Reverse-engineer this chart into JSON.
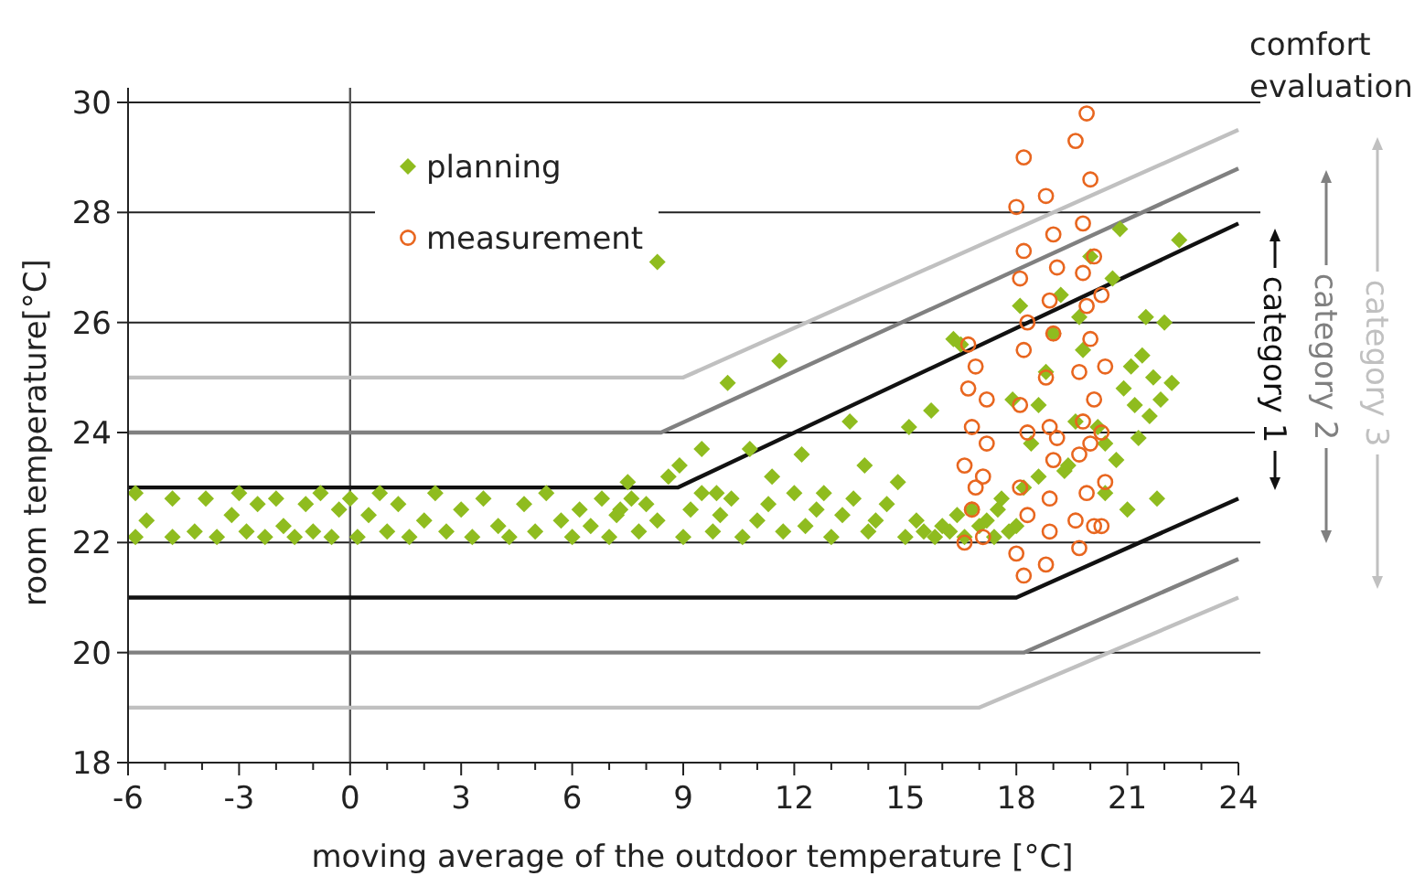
{
  "chart_data": {
    "type": "scatter",
    "xlabel": "moving average of the outdoor temperature [°C]",
    "ylabel": "room temperature[°C]",
    "xlim": [
      -6,
      24
    ],
    "ylim": [
      18,
      30
    ],
    "xticks": [
      -6,
      {
        "value": -5,
        "label": null
      },
      {
        "value": -4,
        "label": null
      },
      -3,
      {
        "value": -2,
        "label": null
      },
      {
        "value": -1,
        "label": null
      },
      0,
      {
        "value": 1,
        "label": null
      },
      {
        "value": 2,
        "label": null
      },
      3,
      {
        "value": 4,
        "label": null
      },
      {
        "value": 5,
        "label": null
      },
      6,
      {
        "value": 7,
        "label": null
      },
      {
        "value": 8,
        "label": null
      },
      9,
      {
        "value": 10,
        "label": null
      },
      {
        "value": 11,
        "label": null
      },
      12,
      {
        "value": 13,
        "label": null
      },
      {
        "value": 14,
        "label": null
      },
      15,
      {
        "value": 16,
        "label": null
      },
      {
        "value": 17,
        "label": null
      },
      18,
      {
        "value": 19,
        "label": null
      },
      {
        "value": 20,
        "label": null
      },
      21,
      {
        "value": 22,
        "label": null
      },
      {
        "value": 23,
        "label": null
      },
      24
    ],
    "yticks": [
      18,
      20,
      22,
      24,
      26,
      28,
      30
    ],
    "grid": "y",
    "legend": "top left",
    "ref_lines": [
      {
        "axis": "x",
        "value": 0,
        "color": "#555555"
      }
    ],
    "annotations": [
      "comfort evaluation"
    ],
    "series": [
      {
        "name": "planning",
        "marker": "diamond",
        "color": "#8fbc1f",
        "x": [
          -5.8,
          -5.8,
          -5.5,
          -4.8,
          -4.8,
          -4.2,
          -3.9,
          -3.6,
          -3.2,
          -3,
          -2.8,
          -2.5,
          -2.3,
          -2,
          -1.8,
          -1.5,
          -1.2,
          -1,
          -0.8,
          -0.5,
          -0.3,
          0,
          0.2,
          0.5,
          0.8,
          1,
          1.3,
          1.6,
          2,
          2.3,
          2.6,
          3,
          3.3,
          3.6,
          4,
          4.3,
          4.7,
          5,
          5.3,
          5.7,
          6,
          6.2,
          6.5,
          6.8,
          7,
          7.2,
          7.5,
          7.8,
          8,
          8.3,
          8.6,
          9,
          9.2,
          9.5,
          9.8,
          10,
          10.3,
          10.6,
          11,
          11.3,
          11.7,
          12,
          12.3,
          12.6,
          13,
          13.3,
          13.6,
          14,
          14.2,
          14.5,
          15,
          15.3,
          15.5,
          15.8,
          16,
          16.2,
          16.4,
          16.6,
          16.8,
          17,
          17.2,
          17.4,
          17.6,
          17.8,
          18,
          18.2,
          18.4,
          18.6,
          18.8,
          19,
          19.2,
          19.4,
          19.6,
          19.8,
          20,
          20.2,
          20.4,
          20.6,
          20.7,
          20.8,
          20.9,
          21,
          21.1,
          21.2,
          21.3,
          21.4,
          21.5,
          21.6,
          21.7,
          21.8,
          21.9,
          22,
          22.2,
          22.4,
          8.3,
          9.5,
          10.2,
          11.6,
          12.2,
          13.5,
          14.8,
          15.7,
          16.5,
          17.5,
          18.6,
          19.7,
          20.4,
          19.3,
          18.1,
          17.9,
          16.3,
          15.1,
          13.9,
          12.8,
          11.4,
          10.8,
          9.9,
          8.9,
          7.6,
          7.3
        ],
        "values": [
          22.9,
          22.1,
          22.4,
          22.8,
          22.1,
          22.2,
          22.8,
          22.1,
          22.5,
          22.9,
          22.2,
          22.7,
          22.1,
          22.8,
          22.3,
          22.1,
          22.7,
          22.2,
          22.9,
          22.1,
          22.6,
          22.8,
          22.1,
          22.5,
          22.9,
          22.2,
          22.7,
          22.1,
          22.4,
          22.9,
          22.2,
          22.6,
          22.1,
          22.8,
          22.3,
          22.1,
          22.7,
          22.2,
          22.9,
          22.4,
          22.1,
          22.6,
          22.3,
          22.8,
          22.1,
          22.5,
          23.1,
          22.2,
          22.7,
          22.4,
          23.2,
          22.1,
          22.6,
          22.9,
          22.2,
          22.5,
          22.8,
          22.1,
          22.4,
          22.7,
          22.2,
          22.9,
          22.3,
          22.6,
          22.1,
          22.5,
          22.8,
          22.2,
          22.4,
          22.7,
          22.1,
          22.4,
          22.2,
          22.1,
          22.3,
          22.2,
          22.5,
          22.1,
          22.6,
          22.3,
          22.4,
          22.1,
          22.8,
          22.2,
          22.3,
          23,
          23.8,
          24.5,
          25.1,
          25.8,
          26.5,
          23.4,
          24.2,
          25.5,
          27.2,
          24.1,
          22.9,
          26.8,
          23.5,
          27.7,
          24.8,
          22.6,
          25.2,
          24.5,
          23.9,
          25.4,
          26.1,
          24.3,
          25,
          22.8,
          24.6,
          26,
          24.9,
          27.5,
          27.1,
          23.7,
          24.9,
          25.3,
          23.6,
          24.2,
          23.1,
          24.4,
          25.6,
          22.6,
          23.2,
          26.1,
          23.8,
          23.3,
          26.3,
          24.6,
          25.7,
          24.1,
          23.4,
          22.9,
          23.2,
          23.7,
          22.9,
          23.4,
          22.8,
          22.6
        ]
      },
      {
        "name": "measurement",
        "marker": "circle",
        "color": "#e8661f",
        "x": [
          16.6,
          16.6,
          16.7,
          16.7,
          16.8,
          16.8,
          16.9,
          16.9,
          17.1,
          17.1,
          17.2,
          17.2,
          18,
          18,
          18.1,
          18.1,
          18.1,
          18.2,
          18.2,
          18.2,
          18.3,
          18.3,
          18.3,
          18.2,
          18.8,
          18.8,
          18.9,
          18.9,
          18.9,
          19,
          19,
          19,
          18.9,
          18.8,
          19.1,
          19.1,
          19.6,
          19.6,
          19.7,
          19.7,
          19.8,
          19.8,
          19.9,
          19.9,
          19.9,
          20,
          20,
          20,
          20.1,
          20.1,
          20.1,
          19.7,
          19.8,
          20.3,
          20.3,
          20.3,
          20.4,
          20.4
        ],
        "values": [
          22,
          23.4,
          24.8,
          25.6,
          22.6,
          24.1,
          23,
          25.2,
          22.1,
          23.2,
          24.6,
          23.8,
          21.8,
          28.1,
          23,
          24.5,
          26.8,
          21.4,
          25.5,
          27.3,
          22.5,
          24,
          26,
          29,
          21.6,
          28.3,
          22.8,
          24.1,
          26.4,
          23.5,
          25.8,
          27.6,
          22.2,
          25,
          23.9,
          27,
          22.4,
          29.3,
          23.6,
          25.1,
          27.8,
          24.2,
          29.8,
          26.3,
          22.9,
          23.8,
          28.6,
          25.7,
          24.6,
          27.2,
          22.3,
          21.9,
          26.9,
          22.3,
          24,
          26.5,
          23.1,
          25.2
        ]
      },
      {
        "name": "category 1",
        "type": "line",
        "color": "#111111",
        "x": [
          -6,
          8.85,
          24
        ],
        "values": [
          23,
          23,
          27.8
        ]
      },
      {
        "type": "line",
        "color": "#111111",
        "x": [
          -6,
          18,
          24
        ],
        "values": [
          21,
          21,
          22.8
        ]
      },
      {
        "name": "category 2",
        "type": "line",
        "color": "#808080",
        "x": [
          -6,
          8.4,
          24
        ],
        "values": [
          24,
          24,
          28.8
        ]
      },
      {
        "type": "line",
        "color": "#808080",
        "x": [
          -6,
          18.2,
          24
        ],
        "values": [
          20,
          20,
          21.7
        ]
      },
      {
        "name": "category 3",
        "type": "line",
        "color": "#c0c0c0",
        "x": [
          -6,
          9,
          24
        ],
        "values": [
          25,
          25,
          29.5
        ]
      },
      {
        "type": "line",
        "color": "#c0c0c0",
        "x": [
          -6,
          17,
          24
        ],
        "values": [
          19,
          19,
          21
        ]
      }
    ]
  }
}
